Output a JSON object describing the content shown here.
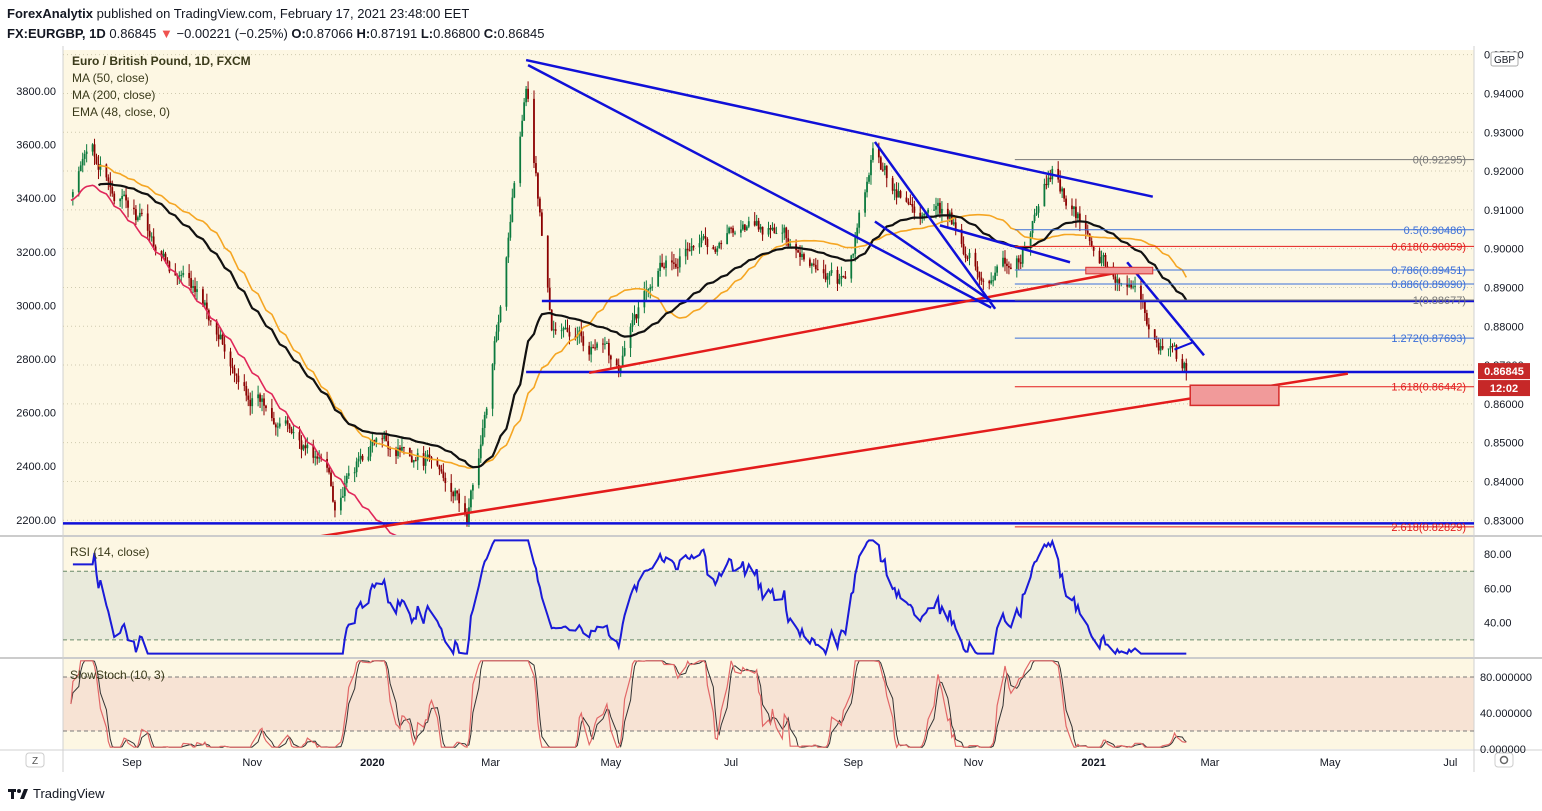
{
  "header": {
    "publisher": "ForexAnalytix",
    "published_text": "published on TradingView.com, February 17, 2021 23:48:00 EET",
    "symbol": "FX:EURGBP, 1D",
    "last": "0.86845",
    "change_arrow": "▼",
    "change": "−0.00221 (−0.25%)",
    "o_label": "O:",
    "o_value": "0.87066",
    "h_label": "H:",
    "h_value": "0.87191",
    "l_label": "L:",
    "l_value": "0.86800",
    "c_label": "C:",
    "c_value": "0.86845"
  },
  "legend": {
    "title": "Euro / British Pound, 1D, FXCM",
    "items": [
      "MA (50, close)",
      "MA (200, close)",
      "EMA (48, close, 0)"
    ]
  },
  "colors": {
    "background": "#fdf7e3",
    "candle_up": "#0c7a3e",
    "candle_down": "#8b0000",
    "ma50": "#f5a623",
    "ma200": "#e0275a",
    "ema48": "#111111",
    "trendline_blue": "#1010d8",
    "trendline_red": "#e31c1c",
    "fib_blue": "#3b6fd8",
    "fib_red": "#e31c1c",
    "rsi": "#1a1ad8",
    "stoch_k": "#e26767",
    "stoch_d": "#333333",
    "price_badge": "#c62828"
  },
  "chart_data": [
    {
      "type": "candlestick",
      "title": "Euro / British Pound, 1D, FXCM",
      "currency": "GBP",
      "x_ticks": [
        "Sep",
        "Nov",
        "2020",
        "Mar",
        "May",
        "Jul",
        "Sep",
        "Nov",
        "2021",
        "Mar",
        "May",
        "Jul"
      ],
      "right_axis_ticks": [
        "0.95000",
        "0.94000",
        "0.93000",
        "0.92000",
        "0.91000",
        "0.90000",
        "0.89000",
        "0.88000",
        "0.87000",
        "0.86000",
        "0.85000",
        "0.84000",
        "0.83000"
      ],
      "left_axis_ticks": [
        "3800.00",
        "3600.00",
        "3400.00",
        "3200.00",
        "3000.00",
        "2800.00",
        "2600.00",
        "2400.00",
        "2200.00"
      ],
      "ylim": [
        0.8262,
        0.9512
      ],
      "last_price": "0.86845",
      "countdown": "12:02",
      "approx_close": [
        {
          "date": "2019-08-01",
          "close": 0.913
        },
        {
          "date": "2019-08-12",
          "close": 0.927
        },
        {
          "date": "2019-08-20",
          "close": 0.916
        },
        {
          "date": "2019-09-05",
          "close": 0.907
        },
        {
          "date": "2019-09-25",
          "close": 0.893
        },
        {
          "date": "2019-10-15",
          "close": 0.88
        },
        {
          "date": "2019-10-25",
          "close": 0.864
        },
        {
          "date": "2019-11-15",
          "close": 0.857
        },
        {
          "date": "2019-12-10",
          "close": 0.842
        },
        {
          "date": "2019-12-13",
          "close": 0.835
        },
        {
          "date": "2020-01-01",
          "close": 0.85
        },
        {
          "date": "2020-01-20",
          "close": 0.848
        },
        {
          "date": "2020-02-10",
          "close": 0.84
        },
        {
          "date": "2020-02-18",
          "close": 0.83
        },
        {
          "date": "2020-03-01",
          "close": 0.865
        },
        {
          "date": "2020-03-19",
          "close": 0.945
        },
        {
          "date": "2020-04-01",
          "close": 0.88
        },
        {
          "date": "2020-04-20",
          "close": 0.875
        },
        {
          "date": "2020-05-05",
          "close": 0.87
        },
        {
          "date": "2020-05-25",
          "close": 0.898
        },
        {
          "date": "2020-06-20",
          "close": 0.902
        },
        {
          "date": "2020-07-05",
          "close": 0.907
        },
        {
          "date": "2020-08-01",
          "close": 0.902
        },
        {
          "date": "2020-08-28",
          "close": 0.89
        },
        {
          "date": "2020-09-11",
          "close": 0.923
        },
        {
          "date": "2020-10-01",
          "close": 0.91
        },
        {
          "date": "2020-10-20",
          "close": 0.907
        },
        {
          "date": "2020-11-05",
          "close": 0.893
        },
        {
          "date": "2020-11-25",
          "close": 0.898
        },
        {
          "date": "2020-12-11",
          "close": 0.92
        },
        {
          "date": "2021-01-01",
          "close": 0.9
        },
        {
          "date": "2021-01-20",
          "close": 0.888
        },
        {
          "date": "2021-02-05",
          "close": 0.875
        },
        {
          "date": "2021-02-17",
          "close": 0.86845
        }
      ],
      "fib_levels": [
        {
          "ratio": "0",
          "label": "0(0.92295)",
          "value": 0.92295
        },
        {
          "ratio": "0.5",
          "label": "0.5(0.90486)",
          "value": 0.90486
        },
        {
          "ratio": "0.618",
          "label": "0.618(0.90059)",
          "value": 0.90059
        },
        {
          "ratio": "0.786",
          "label": "0.786(0.89451)",
          "value": 0.89451
        },
        {
          "ratio": "0.886",
          "label": "0.886(0.89090)",
          "value": 0.8909
        },
        {
          "ratio": "1",
          "label": "1(0.88677)",
          "value": 0.88677
        },
        {
          "ratio": "1.272",
          "label": "1.272(0.87693)",
          "value": 0.87693
        },
        {
          "ratio": "1.618",
          "label": "1.618(0.86442)",
          "value": 0.86442
        },
        {
          "ratio": "2.618",
          "label": "2.618(0.82829)",
          "value": 0.82829
        }
      ]
    },
    {
      "type": "line",
      "title": "RSI (14, close)",
      "ylim": [
        20,
        90
      ],
      "ticks": [
        "80.00",
        "60.00",
        "40.00"
      ],
      "bands": [
        70,
        30
      ]
    },
    {
      "type": "line",
      "title": "SlowStoch (10, 3)",
      "ylim": [
        0,
        100
      ],
      "ticks": [
        "80.000000",
        "40.000000",
        "0.000000"
      ],
      "bands": [
        80,
        20
      ]
    }
  ],
  "footer": {
    "brand": "TradingView",
    "tz_button": "Z"
  }
}
